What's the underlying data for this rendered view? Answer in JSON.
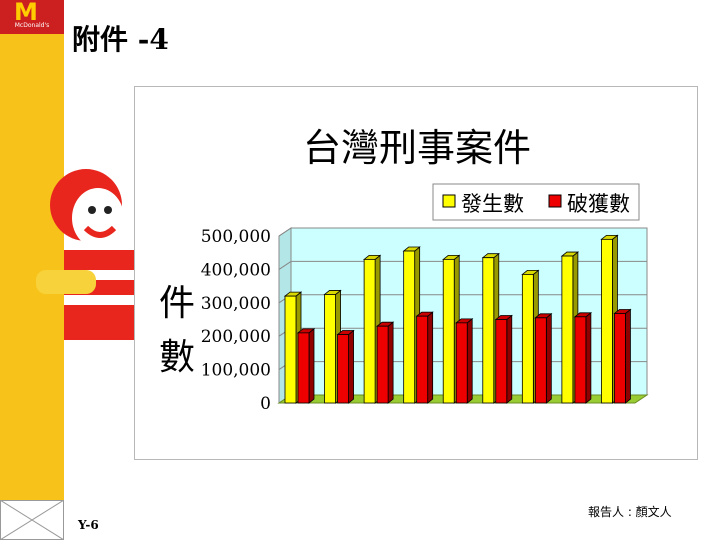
{
  "slide": {
    "title": "附件 -4",
    "page_number": "Y-6",
    "reporter": "報告人 : 顏文人",
    "logo_text": "McDonald's",
    "logo_symbol": "M"
  },
  "colors": {
    "sidebar": "#f7c21a",
    "logo_red": "#cc1f1f",
    "plot_bg": "#ccffff",
    "floor": "#99cc33",
    "series_1": "#ffff00",
    "series_2": "#ee0000"
  },
  "chart_data": {
    "type": "bar",
    "title": "台灣刑事案件",
    "ylabel": "件數",
    "xlabel": "",
    "ylim": [
      0,
      500000
    ],
    "yticks": [
      0,
      100000,
      200000,
      300000,
      400000,
      500000
    ],
    "ytick_labels": [
      "0",
      "100,000",
      "200,000",
      "300,000",
      "400,000",
      "500,000"
    ],
    "grid": true,
    "legend_position": "top-right",
    "categories": [
      "",
      "",
      "",
      "",
      "",
      "",
      "",
      "",
      ""
    ],
    "series": [
      {
        "name": "發生數",
        "color": "#ffff00",
        "values": [
          320000,
          325000,
          430000,
          455000,
          430000,
          435000,
          385000,
          440000,
          490000
        ]
      },
      {
        "name": "破獲數",
        "color": "#ee0000",
        "values": [
          210000,
          205000,
          230000,
          260000,
          240000,
          250000,
          255000,
          258000,
          268000
        ]
      }
    ]
  }
}
